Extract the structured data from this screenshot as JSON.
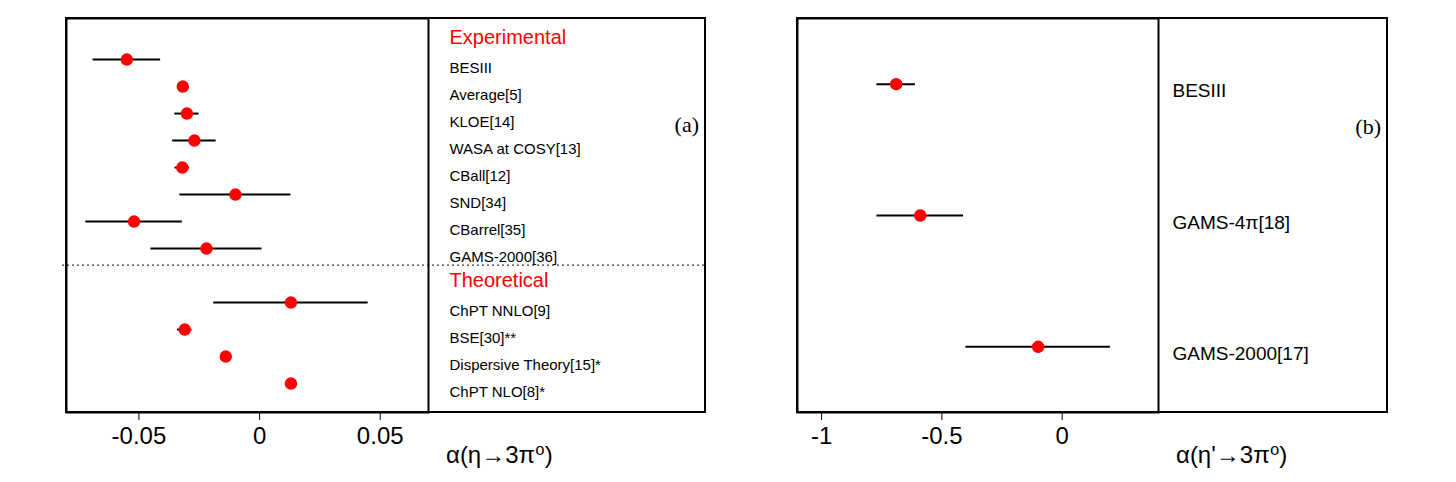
{
  "chart_data": [
    {
      "type": "scatter",
      "marker": "circle",
      "color": "#ff0000",
      "x_label": "α(η→3π⁰)",
      "panel_label": "(a)",
      "xlim": [
        -0.08,
        0.07
      ],
      "xticks": [
        -0.05,
        0,
        0.05
      ],
      "tick_labels": "x",
      "groups": [
        {
          "name": "Experimental",
          "categories": [
            "BESIII",
            "Average[5]",
            "KLOE[14]",
            "WASA at COSY[13]",
            "CBall[12]",
            "SND[34]",
            "CBarrel[35]",
            "GAMS-2000[36]"
          ],
          "values": [
            -0.055,
            -0.0318,
            -0.0301,
            -0.027,
            -0.032,
            -0.01,
            -0.052,
            -0.022
          ],
          "errors": [
            0.014,
            0.0015,
            0.005,
            0.009,
            0.003,
            0.023,
            0.02,
            0.023
          ]
        },
        {
          "name": "Theoretical",
          "categories": [
            "ChPT NNLO[9]",
            "BSE[30]**",
            "Dispersive Theory[15]*",
            "ChPT NLO[8]*"
          ],
          "values": [
            0.013,
            -0.031,
            -0.014,
            0.013
          ],
          "errors": [
            0.032,
            0.003,
            null,
            null
          ]
        }
      ]
    },
    {
      "type": "scatter",
      "marker": "circle",
      "color": "#ff0000",
      "x_label": "α(η'→3π⁰)",
      "panel_label": "(b)",
      "xlim": [
        -1.1,
        0.4
      ],
      "xticks": [
        -1,
        -0.5,
        0
      ],
      "tick_labels": "x",
      "categories": [
        "BESIII",
        "GAMS-4π[18]",
        "GAMS-2000[17]"
      ],
      "values": [
        -0.69,
        -0.59,
        -0.1
      ],
      "errors": [
        0.08,
        0.18,
        0.3
      ]
    }
  ]
}
